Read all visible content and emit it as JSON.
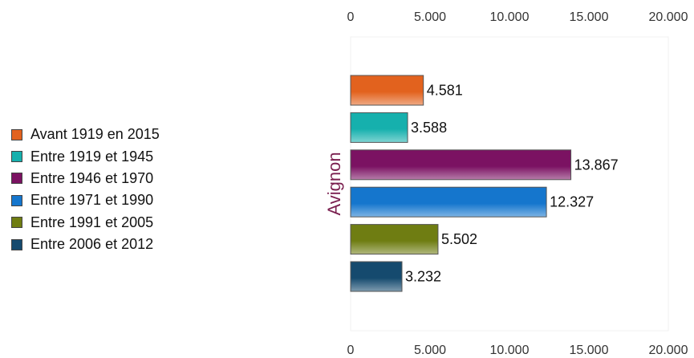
{
  "chart_data": {
    "type": "bar",
    "orientation": "horizontal",
    "category": "Avignon",
    "xlim": [
      0,
      20000
    ],
    "x_ticks": [
      0,
      5000,
      10000,
      15000,
      20000
    ],
    "x_tick_labels": [
      "0",
      "5.000",
      "10.000",
      "15.000",
      "20.000"
    ],
    "legend_position": "left",
    "series": [
      {
        "name": "Avant 1919 en 2015",
        "value": 4581,
        "label": "4.581",
        "color": "#e2621e"
      },
      {
        "name": "Entre 1919 et 1945",
        "value": 3588,
        "label": "3.588",
        "color": "#16b0ad"
      },
      {
        "name": "Entre 1946 et 1970",
        "value": 13867,
        "label": "13.867",
        "color": "#7b1262"
      },
      {
        "name": "Entre 1971 et 1990",
        "value": 12327,
        "label": "12.327",
        "color": "#1576cd"
      },
      {
        "name": "Entre 1991 et 2005",
        "value": 5502,
        "label": "5.502",
        "color": "#6f7d12"
      },
      {
        "name": "Entre 2006 et 2012",
        "value": 3232,
        "label": "3.232",
        "color": "#154a6e"
      }
    ]
  }
}
